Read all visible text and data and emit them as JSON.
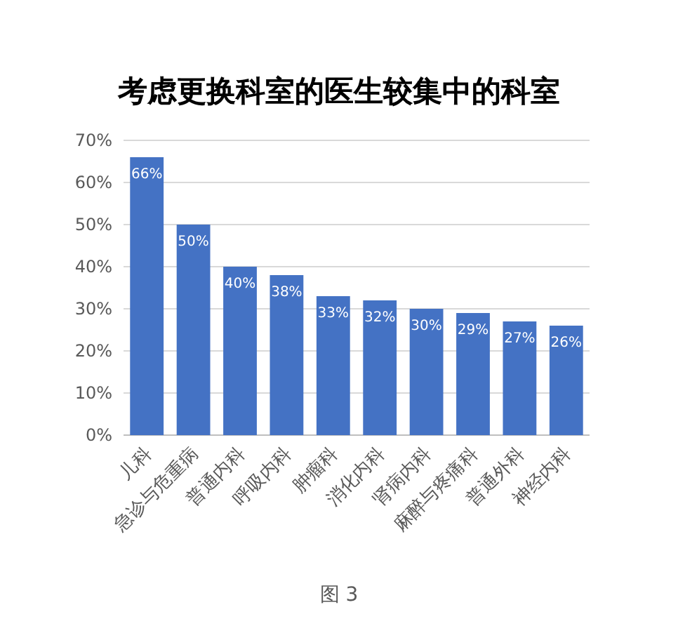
{
  "chart_data": {
    "type": "bar",
    "title": "考虑更换科室的医生较集中的科室",
    "categories": [
      "儿科",
      "急诊与危重病",
      "普通内科",
      "呼吸内科",
      "肿瘤科",
      "消化内科",
      "肾病内科",
      "麻醉与疼痛科",
      "普通外科",
      "神经内科"
    ],
    "values": [
      66,
      50,
      40,
      38,
      33,
      32,
      30,
      29,
      27,
      26
    ],
    "value_labels": [
      "66%",
      "50%",
      "40%",
      "38%",
      "33%",
      "32%",
      "30%",
      "29%",
      "27%",
      "26%"
    ],
    "color": "#4472c4",
    "ylim": [
      0,
      70
    ],
    "yticks": [
      {
        "value": 0,
        "label": "0%"
      },
      {
        "value": 10,
        "label": "10%"
      },
      {
        "value": 20,
        "label": "20%"
      },
      {
        "value": 30,
        "label": "30%"
      },
      {
        "value": 40,
        "label": "40%"
      },
      {
        "value": 50,
        "label": "50%"
      },
      {
        "value": 60,
        "label": "60%"
      },
      {
        "value": 70,
        "label": "70%"
      }
    ],
    "grid": "y",
    "annotations": [
      "图 3"
    ]
  }
}
